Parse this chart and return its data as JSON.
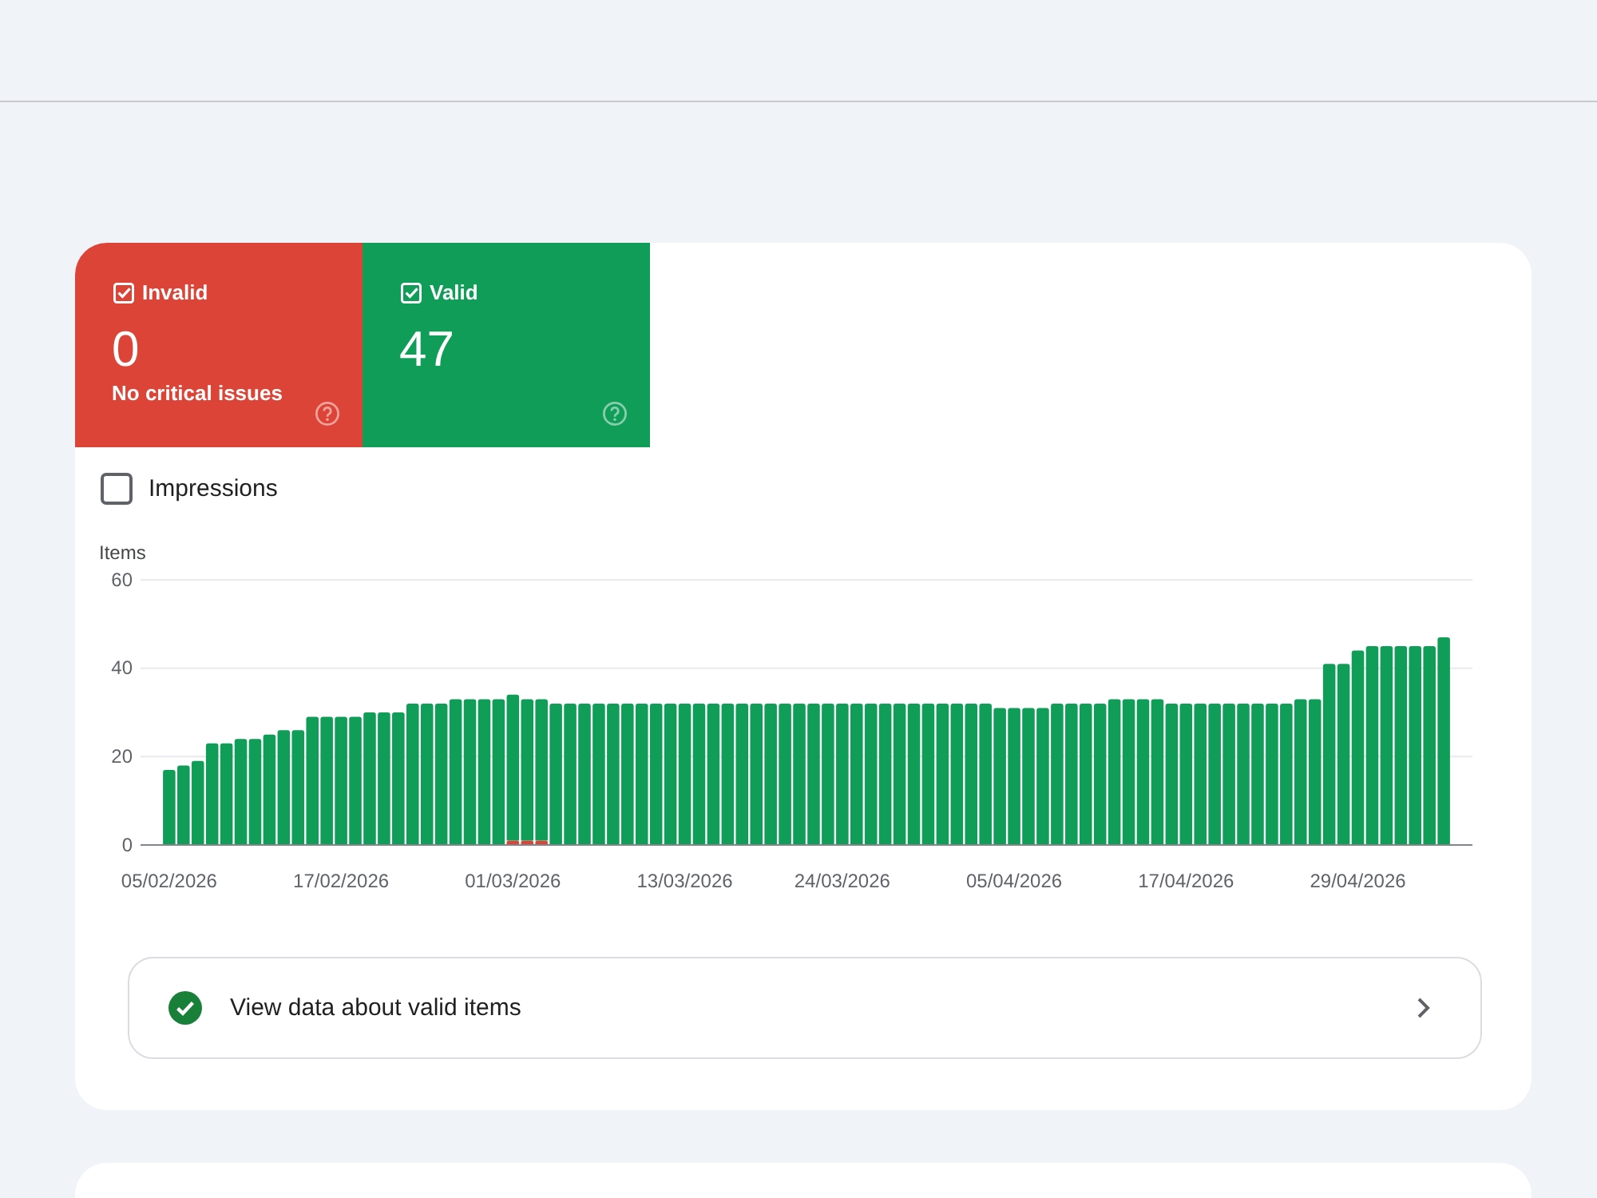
{
  "chart_data": {
    "type": "bar",
    "stacked": true,
    "ylabel": "Items",
    "x": [
      "2026-02-05",
      "2026-02-06",
      "2026-02-07",
      "2026-02-08",
      "2026-02-09",
      "2026-02-10",
      "2026-02-11",
      "2026-02-12",
      "2026-02-13",
      "2026-02-14",
      "2026-02-15",
      "2026-02-16",
      "2026-02-17",
      "2026-02-18",
      "2026-02-19",
      "2026-02-20",
      "2026-02-21",
      "2026-02-22",
      "2026-02-23",
      "2026-02-24",
      "2026-02-25",
      "2026-02-26",
      "2026-02-27",
      "2026-02-28",
      "2026-03-01",
      "2026-03-02",
      "2026-03-03",
      "2026-03-04",
      "2026-03-05",
      "2026-03-06",
      "2026-03-07",
      "2026-03-08",
      "2026-03-09",
      "2026-03-10",
      "2026-03-11",
      "2026-03-12",
      "2026-03-13",
      "2026-03-14",
      "2026-03-15",
      "2026-03-16",
      "2026-03-17",
      "2026-03-18",
      "2026-03-19",
      "2026-03-20",
      "2026-03-21",
      "2026-03-22",
      "2026-03-23",
      "2026-03-24",
      "2026-03-25",
      "2026-03-26",
      "2026-03-27",
      "2026-03-28",
      "2026-03-29",
      "2026-03-30",
      "2026-03-31",
      "2026-04-01",
      "2026-04-02",
      "2026-04-03",
      "2026-04-04",
      "2026-04-05",
      "2026-04-06",
      "2026-04-07",
      "2026-04-08",
      "2026-04-09",
      "2026-04-10",
      "2026-04-11",
      "2026-04-12",
      "2026-04-13",
      "2026-04-14",
      "2026-04-15",
      "2026-04-16",
      "2026-04-17",
      "2026-04-18",
      "2026-04-19",
      "2026-04-20",
      "2026-04-21",
      "2026-04-22",
      "2026-04-23",
      "2026-04-24",
      "2026-04-25",
      "2026-04-26",
      "2026-04-27",
      "2026-04-28",
      "2026-04-29",
      "2026-04-30",
      "2026-05-01",
      "2026-05-02",
      "2026-05-03",
      "2026-05-04",
      "2026-05-05"
    ],
    "xlim": [
      "2026-02-03",
      "2026-05-07"
    ],
    "xticks": [
      {
        "value": "2026-02-05",
        "label": "05/02/2026"
      },
      {
        "value": "2026-02-17",
        "label": "17/02/2026"
      },
      {
        "value": "2026-03-01",
        "label": "01/03/2026"
      },
      {
        "value": "2026-03-13",
        "label": "13/03/2026"
      },
      {
        "value": "2026-03-24",
        "label": "24/03/2026"
      },
      {
        "value": "2026-04-05",
        "label": "05/04/2026"
      },
      {
        "value": "2026-04-17",
        "label": "17/04/2026"
      },
      {
        "value": "2026-04-29",
        "label": "29/04/2026"
      }
    ],
    "ylim": [
      0,
      60
    ],
    "yticks": [
      0,
      20,
      40,
      60
    ],
    "grid": "y",
    "legend": "top left",
    "series": [
      {
        "name": "Invalid",
        "color": "#db4437",
        "values": [
          null,
          null,
          null,
          null,
          null,
          null,
          null,
          null,
          null,
          null,
          null,
          null,
          null,
          null,
          null,
          null,
          null,
          null,
          null,
          null,
          null,
          null,
          null,
          null,
          1,
          1,
          1,
          null,
          null,
          null,
          null,
          null,
          null,
          null,
          null,
          null,
          null,
          null,
          null,
          null,
          null,
          null,
          null,
          null,
          null,
          null,
          null,
          null,
          null,
          null,
          null,
          null,
          null,
          null,
          null,
          null,
          null,
          null,
          null,
          null,
          null,
          null,
          null,
          null,
          null,
          null,
          null,
          null,
          null,
          null,
          null,
          null,
          null,
          null,
          null,
          null,
          null,
          null,
          null,
          null,
          null,
          null,
          null,
          null,
          null,
          null,
          null,
          null,
          null,
          null
        ]
      },
      {
        "name": "Valid",
        "color": "#0f9d58",
        "values": [
          17,
          18,
          19,
          23,
          23,
          24,
          24,
          25,
          26,
          26,
          29,
          29,
          29,
          29,
          30,
          30,
          30,
          32,
          32,
          32,
          33,
          33,
          33,
          33,
          33,
          32,
          32,
          32,
          32,
          32,
          32,
          32,
          32,
          32,
          32,
          32,
          32,
          32,
          32,
          32,
          32,
          32,
          32,
          32,
          32,
          32,
          32,
          32,
          32,
          32,
          32,
          32,
          32,
          32,
          32,
          32,
          32,
          32,
          31,
          31,
          31,
          31,
          32,
          32,
          32,
          32,
          33,
          33,
          33,
          33,
          32,
          32,
          32,
          32,
          32,
          32,
          32,
          32,
          32,
          33,
          33,
          41,
          41,
          44,
          45,
          45,
          45,
          45,
          45,
          47
        ]
      }
    ],
    "annotations": [
      "0",
      "No critical issues",
      "47",
      "Impressions",
      "View data about valid items"
    ]
  }
}
